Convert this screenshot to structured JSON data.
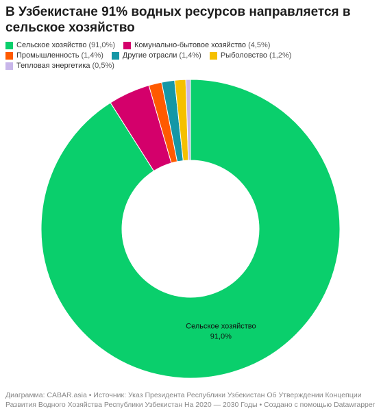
{
  "chart_data": {
    "type": "donut",
    "title": "В Узбекистане 91% водных ресурсов направляется в сельское хозяйство",
    "categories": [
      "Сельское хозяйство",
      "Комунально-бытовое хозяйство",
      "Промышленность",
      "Другие отрасли",
      "Рыболовство",
      "Тепловая энергетика"
    ],
    "values": [
      91.0,
      4.5,
      1.4,
      1.4,
      1.2,
      0.5
    ],
    "legend_labels": [
      "(91,0%)",
      "(4,5%)",
      "(1,4%)",
      "(1,4%)",
      "(1,2%)",
      "(0,5%)"
    ],
    "value_labels": [
      "91,0%",
      null,
      null,
      null,
      null,
      null
    ],
    "colors": [
      "#0acf6c",
      "#d4006b",
      "#ff5a00",
      "#1597a6",
      "#f5c000",
      "#c8b6ea"
    ],
    "footer": [
      "Диаграмма: CABAR.asia • Источник: Указ Президента Республики Узбекистан Об Утверждении Концепции",
      "Развития Водного Хозяйства Республики Узбекистан На 2020 — 2030 Годы • Создано с помощью Datawrapper"
    ]
  }
}
